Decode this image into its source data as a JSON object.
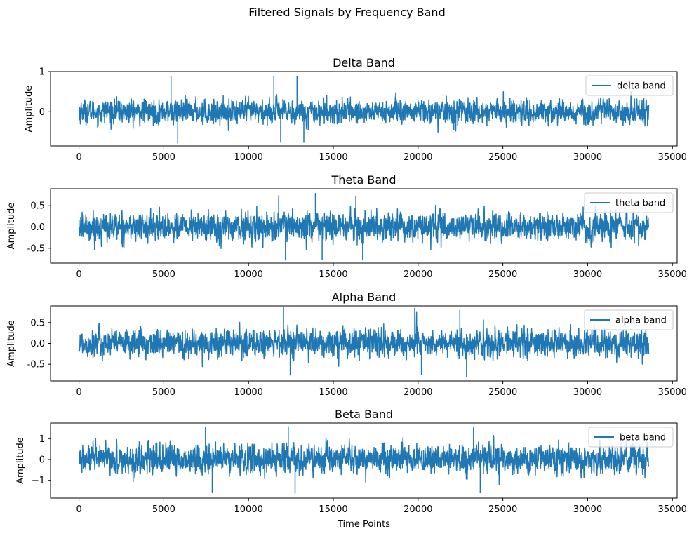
{
  "figure": {
    "title": "Filtered Signals by Frequency Band"
  },
  "chart_data": [
    {
      "type": "line",
      "title": "Delta Band",
      "xlabel": "",
      "ylabel": "Amplitude",
      "xlim": [
        -1680,
        35280
      ],
      "ylim": [
        -0.85,
        1.0
      ],
      "xticks": [
        0,
        5000,
        10000,
        15000,
        20000,
        25000,
        30000,
        35000
      ],
      "yticks": [
        1,
        0
      ],
      "ytick_labels": [
        "1",
        "0"
      ],
      "x_range": [
        0,
        33600
      ],
      "typical_peak": 0.45,
      "max_peak": 0.95,
      "min_trough": -0.8,
      "series": [
        {
          "name": "delta band",
          "color": "#1f77b4"
        }
      ],
      "legend": "top-right",
      "grid": false
    },
    {
      "type": "line",
      "title": "Theta Band",
      "xlabel": "",
      "ylabel": "Amplitude",
      "xlim": [
        -1680,
        35280
      ],
      "ylim": [
        -0.85,
        0.9
      ],
      "xticks": [
        0,
        5000,
        10000,
        15000,
        20000,
        25000,
        30000,
        35000
      ],
      "yticks": [
        0.5,
        0.0,
        -0.5
      ],
      "ytick_labels": [
        "0.5",
        "0.0",
        "-0.5"
      ],
      "x_range": [
        0,
        33600
      ],
      "typical_peak": 0.5,
      "max_peak": 0.82,
      "min_trough": -0.8,
      "series": [
        {
          "name": "theta band",
          "color": "#1f77b4"
        }
      ],
      "legend": "top-right",
      "grid": false
    },
    {
      "type": "line",
      "title": "Alpha Band",
      "xlabel": "",
      "ylabel": "Amplitude",
      "xlim": [
        -1680,
        35280
      ],
      "ylim": [
        -0.9,
        0.9
      ],
      "xticks": [
        0,
        5000,
        10000,
        15000,
        20000,
        25000,
        30000,
        35000
      ],
      "yticks": [
        0.5,
        0.0,
        -0.5
      ],
      "ytick_labels": [
        "0.5",
        "0.0",
        "-0.5"
      ],
      "x_range": [
        0,
        33600
      ],
      "typical_peak": 0.5,
      "max_peak": 0.88,
      "min_trough": -0.85,
      "series": [
        {
          "name": "alpha band",
          "color": "#1f77b4"
        }
      ],
      "legend": "top-right",
      "grid": false
    },
    {
      "type": "line",
      "title": "Beta Band",
      "xlabel": "Time Points",
      "ylabel": "Amplitude",
      "xlim": [
        -1680,
        35280
      ],
      "ylim": [
        -1.85,
        1.75
      ],
      "xticks": [
        0,
        5000,
        10000,
        15000,
        20000,
        25000,
        30000,
        35000
      ],
      "yticks": [
        1,
        0,
        -1
      ],
      "ytick_labels": [
        "1",
        "0",
        "−1"
      ],
      "x_range": [
        0,
        33600
      ],
      "typical_peak": 1.05,
      "max_peak": 1.65,
      "min_trough": -1.75,
      "series": [
        {
          "name": "beta band",
          "color": "#1f77b4"
        }
      ],
      "legend": "top-right",
      "grid": false
    }
  ]
}
